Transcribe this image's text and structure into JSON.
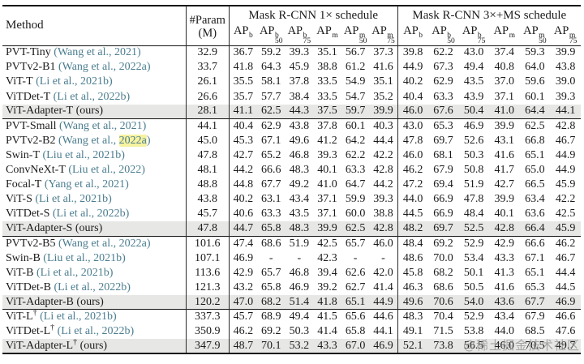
{
  "header": {
    "method": "Method",
    "param_line1": "#Param",
    "param_line2": "(M)",
    "group1": "Mask R-CNN 1× schedule",
    "group2": "Mask R-CNN 3×+MS schedule",
    "metrics": [
      {
        "base": "AP",
        "sup": "b",
        "sub": ""
      },
      {
        "base": "AP",
        "sup": "b",
        "sub": "50"
      },
      {
        "base": "AP",
        "sup": "b",
        "sub": "75"
      },
      {
        "base": "AP",
        "sup": "m",
        "sub": ""
      },
      {
        "base": "AP",
        "sup": "m",
        "sub": "50"
      },
      {
        "base": "AP",
        "sup": "m",
        "sub": "75"
      }
    ]
  },
  "groups": [
    {
      "rows": [
        {
          "name": "PVT-Tiny",
          "dagger": false,
          "cite": "(Wang et al., 2021)",
          "cite_hl": null,
          "ours": false,
          "highlight": false,
          "param": "32.9",
          "s1": [
            "36.7",
            "59.2",
            "39.3",
            "35.1",
            "56.7",
            "37.3"
          ],
          "s3": [
            "39.8",
            "62.2",
            "43.0",
            "37.4",
            "59.3",
            "39.9"
          ]
        },
        {
          "name": "PVTv2-B1",
          "dagger": false,
          "cite": "(Wang et al., 2022a)",
          "cite_hl": null,
          "ours": false,
          "highlight": false,
          "param": "33.7",
          "s1": [
            "41.8",
            "64.3",
            "45.9",
            "38.8",
            "61.2",
            "41.6"
          ],
          "s3": [
            "44.9",
            "67.3",
            "49.4",
            "40.8",
            "64.0",
            "43.8"
          ]
        },
        {
          "name": "ViT-T",
          "dagger": false,
          "cite": "(Li et al., 2021b)",
          "cite_hl": null,
          "ours": false,
          "highlight": false,
          "param": "26.1",
          "s1": [
            "35.5",
            "58.1",
            "37.8",
            "33.5",
            "54.9",
            "35.1"
          ],
          "s3": [
            "40.2",
            "62.9",
            "43.5",
            "37.0",
            "59.6",
            "39.0"
          ]
        },
        {
          "name": "ViTDet-T",
          "dagger": false,
          "cite": "(Li et al., 2022b)",
          "cite_hl": null,
          "ours": false,
          "highlight": false,
          "param": "26.6",
          "s1": [
            "35.7",
            "57.7",
            "38.4",
            "33.5",
            "54.7",
            "35.2"
          ],
          "s3": [
            "40.4",
            "63.3",
            "43.9",
            "37.1",
            "60.1",
            "39.3"
          ]
        },
        {
          "name": "ViT-Adapter-T",
          "dagger": false,
          "cite": "(ours)",
          "cite_hl": null,
          "ours": true,
          "highlight": true,
          "param": "28.1",
          "s1": [
            "41.1",
            "62.5",
            "44.3",
            "37.5",
            "59.7",
            "39.9"
          ],
          "s3": [
            "46.0",
            "67.6",
            "50.4",
            "41.0",
            "64.4",
            "44.1"
          ]
        }
      ]
    },
    {
      "rows": [
        {
          "name": "PVT-Small",
          "dagger": false,
          "cite": "(Wang et al., 2021)",
          "cite_hl": null,
          "ours": false,
          "highlight": false,
          "param": "44.1",
          "s1": [
            "40.4",
            "62.9",
            "43.8",
            "37.8",
            "60.1",
            "40.3"
          ],
          "s3": [
            "43.0",
            "65.3",
            "46.9",
            "39.9",
            "62.5",
            "42.8"
          ]
        },
        {
          "name": "PVTv2-B2",
          "dagger": false,
          "cite": "(Wang et al., 2022a)",
          "cite_hl": "2022a",
          "ours": false,
          "highlight": false,
          "param": "45.0",
          "s1": [
            "45.3",
            "67.1",
            "49.6",
            "41.2",
            "64.2",
            "44.4"
          ],
          "s3": [
            "47.8",
            "69.7",
            "52.6",
            "43.1",
            "66.8",
            "46.7"
          ]
        },
        {
          "name": "Swin-T",
          "dagger": false,
          "cite": "(Liu et al., 2021b)",
          "cite_hl": null,
          "ours": false,
          "highlight": false,
          "param": "47.8",
          "s1": [
            "42.7",
            "65.2",
            "46.8",
            "39.3",
            "62.2",
            "42.2"
          ],
          "s3": [
            "46.0",
            "68.1",
            "50.3",
            "41.6",
            "65.1",
            "44.9"
          ]
        },
        {
          "name": "ConvNeXt-T",
          "dagger": false,
          "cite": "(Liu et al., 2022)",
          "cite_hl": null,
          "ours": false,
          "highlight": false,
          "param": "48.1",
          "s1": [
            "44.2",
            "66.6",
            "48.3",
            "40.1",
            "63.3",
            "42.8"
          ],
          "s3": [
            "46.2",
            "67.9",
            "50.8",
            "41.7",
            "65.0",
            "44.9"
          ]
        },
        {
          "name": "Focal-T",
          "dagger": false,
          "cite": "(Yang et al., 2021)",
          "cite_hl": null,
          "ours": false,
          "highlight": false,
          "param": "48.8",
          "s1": [
            "44.8",
            "67.7",
            "49.2",
            "41.0",
            "64.7",
            "44.2"
          ],
          "s3": [
            "47.2",
            "69.4",
            "51.9",
            "42.7",
            "66.5",
            "45.9"
          ]
        },
        {
          "name": "ViT-S",
          "dagger": false,
          "cite": "(Li et al., 2021b)",
          "cite_hl": null,
          "ours": false,
          "highlight": false,
          "param": "43.8",
          "s1": [
            "40.2",
            "63.1",
            "43.4",
            "37.1",
            "59.9",
            "39.3"
          ],
          "s3": [
            "44.0",
            "66.9",
            "47.8",
            "39.9",
            "63.4",
            "42.2"
          ]
        },
        {
          "name": "ViTDet-S",
          "dagger": false,
          "cite": "(Li et al., 2022b)",
          "cite_hl": null,
          "ours": false,
          "highlight": false,
          "param": "45.7",
          "s1": [
            "40.6",
            "63.3",
            "43.5",
            "37.1",
            "60.0",
            "38.8"
          ],
          "s3": [
            "44.5",
            "66.9",
            "48.4",
            "40.1",
            "63.6",
            "42.5"
          ]
        },
        {
          "name": "ViT-Adapter-S",
          "dagger": false,
          "cite": "(ours)",
          "cite_hl": null,
          "ours": true,
          "highlight": true,
          "param": "47.8",
          "s1": [
            "44.7",
            "65.8",
            "48.3",
            "39.9",
            "62.5",
            "42.8"
          ],
          "s3": [
            "48.2",
            "69.7",
            "52.5",
            "42.8",
            "66.4",
            "45.9"
          ]
        }
      ]
    },
    {
      "rows": [
        {
          "name": "PVTv2-B5",
          "dagger": false,
          "cite": "(Wang et al., 2022a)",
          "cite_hl": null,
          "ours": false,
          "highlight": false,
          "param": "101.6",
          "s1": [
            "47.4",
            "68.6",
            "51.9",
            "42.5",
            "65.7",
            "46.0"
          ],
          "s3": [
            "48.4",
            "69.2",
            "52.9",
            "42.9",
            "66.6",
            "46.2"
          ]
        },
        {
          "name": "Swin-B",
          "dagger": false,
          "cite": "(Liu et al., 2021b)",
          "cite_hl": null,
          "ours": false,
          "highlight": false,
          "param": "107.1",
          "s1": [
            "46.9",
            "-",
            "-",
            "42.3",
            "-",
            "-"
          ],
          "s3": [
            "48.6",
            "70.0",
            "53.4",
            "43.3",
            "67.1",
            "46.7"
          ]
        },
        {
          "name": "ViT-B",
          "dagger": false,
          "cite": "(Li et al., 2021b)",
          "cite_hl": null,
          "ours": false,
          "highlight": false,
          "param": "113.6",
          "s1": [
            "42.9",
            "65.7",
            "46.8",
            "39.4",
            "62.6",
            "42.0"
          ],
          "s3": [
            "45.8",
            "68.2",
            "50.1",
            "41.3",
            "65.1",
            "44.4"
          ]
        },
        {
          "name": "ViTDet-B",
          "dagger": false,
          "cite": "(Li et al., 2022b)",
          "cite_hl": null,
          "ours": false,
          "highlight": false,
          "param": "121.3",
          "s1": [
            "43.2",
            "65.8",
            "46.9",
            "39.2",
            "62.7",
            "41.4"
          ],
          "s3": [
            "46.3",
            "68.6",
            "50.5",
            "41.6",
            "65.3",
            "44.5"
          ]
        },
        {
          "name": "ViT-Adapter-B",
          "dagger": false,
          "cite": "(ours)",
          "cite_hl": null,
          "ours": true,
          "highlight": true,
          "param": "120.2",
          "s1": [
            "47.0",
            "68.2",
            "51.4",
            "41.8",
            "65.1",
            "44.9"
          ],
          "s3": [
            "49.6",
            "70.6",
            "54.0",
            "43.6",
            "67.7",
            "46.9"
          ]
        }
      ]
    },
    {
      "rows": [
        {
          "name": "ViT-L",
          "dagger": true,
          "cite": "(Li et al., 2021b)",
          "cite_hl": null,
          "ours": false,
          "highlight": false,
          "param": "337.3",
          "s1": [
            "45.7",
            "68.9",
            "49.4",
            "41.5",
            "65.6",
            "44.6"
          ],
          "s3": [
            "48.3",
            "70.4",
            "52.9",
            "43.4",
            "67.9",
            "46.6"
          ]
        },
        {
          "name": "ViTDet-L",
          "dagger": true,
          "cite": "(Li et al., 2022b)",
          "cite_hl": null,
          "ours": false,
          "highlight": false,
          "param": "350.9",
          "s1": [
            "46.2",
            "69.2",
            "50.3",
            "41.4",
            "65.8",
            "44.1"
          ],
          "s3": [
            "49.1",
            "71.5",
            "53.8",
            "44.0",
            "68.5",
            "47.6"
          ]
        },
        {
          "name": "ViT-Adapter-L",
          "dagger": true,
          "cite": "(ours)",
          "cite_hl": null,
          "ours": true,
          "highlight": true,
          "param": "347.9",
          "s1": [
            "48.7",
            "70.1",
            "53.2",
            "43.3",
            "67.0",
            "46.9"
          ],
          "s3": [
            "52.1",
            "73.8",
            "56.5",
            "46.0",
            "70.5",
            "49.7"
          ]
        }
      ]
    }
  ],
  "watermark": "@稀土掘金技术社区",
  "colors": {
    "citation": "#4b7d8f",
    "row_highlight": "#e7e7e6",
    "year_highlight": "#f6f2a0",
    "rule": "#151515"
  }
}
